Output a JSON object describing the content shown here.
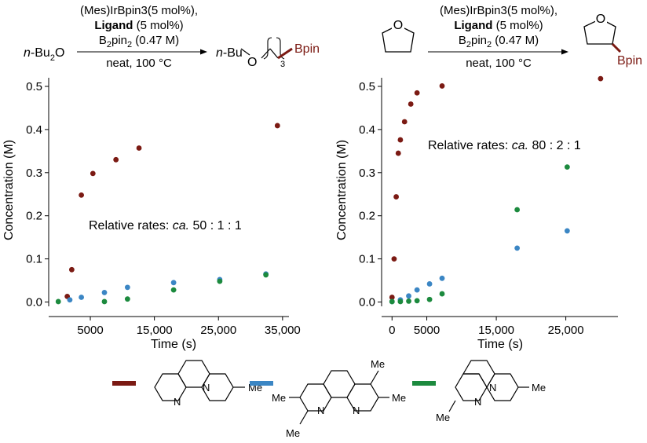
{
  "colors": {
    "red": "#7b1a13",
    "blue": "#3b86c4",
    "green": "#1c8a3e"
  },
  "left_scheme": {
    "reactant": "n-Bu2O",
    "line1": "(Mes)IrBpin3(5 mol%),",
    "line2_bold": "Ligand",
    "line2_rest": " (5 mol%)",
    "line3": "B2pin2 (0.47 M)",
    "below": "neat, 100 °C",
    "product_prefix": "n-Bu",
    "product_O": "O",
    "product_sub": "3",
    "product_boron": "Bpin"
  },
  "right_scheme": {
    "line1": "(Mes)IrBpin3(5 mol%),",
    "line2_bold": "Ligand",
    "line2_rest": " (5 mol%)",
    "line3": "B2pin2 (0.47 M)",
    "below": "neat, 100 °C",
    "ring_O": "O",
    "product_boron": "Bpin"
  },
  "ligands": {
    "me": "Me",
    "n": "N"
  },
  "chart_data": [
    {
      "type": "scatter",
      "xlabel": "Time (s)",
      "ylabel": "Concentration (M)",
      "xlim": [
        -1500,
        36000
      ],
      "ylim": [
        -0.01,
        0.52
      ],
      "xticks": [
        5000,
        15000,
        25000,
        35000
      ],
      "xtick_labels": [
        "5000",
        "15,000",
        "25,000",
        "35,000"
      ],
      "yticks": [
        0.0,
        0.1,
        0.2,
        0.3,
        0.4,
        0.5
      ],
      "ytick_labels": [
        "0.0",
        "0.1",
        "0.2",
        "0.3",
        "0.4",
        "0.5"
      ],
      "annotation_prefix": "Relative rates: ",
      "annotation_italic": "ca.",
      "annotation_suffix": " 50 : 1 : 1",
      "series": [
        {
          "name": "2-methyl-1,10-phenanthroline",
          "color": "red",
          "x": [
            1400,
            2100,
            3600,
            5400,
            9000,
            12600,
            34200
          ],
          "y": [
            0.013,
            0.075,
            0.248,
            0.298,
            0.33,
            0.357,
            0.409
          ]
        },
        {
          "name": "3,4,7,8-tetramethyl-1,10-phenanthroline",
          "color": "blue",
          "x": [
            1800,
            3600,
            7200,
            10800,
            18000,
            25200,
            32400
          ],
          "y": [
            0.005,
            0.011,
            0.022,
            0.034,
            0.045,
            0.052,
            0.065
          ]
        },
        {
          "name": "2,9-dimethyl-1,10-phenanthroline",
          "color": "green",
          "x": [
            0,
            7200,
            10800,
            18000,
            25200,
            32400
          ],
          "y": [
            0.001,
            0.001,
            0.007,
            0.028,
            0.048,
            0.063
          ]
        }
      ]
    },
    {
      "type": "scatter",
      "xlabel": "Time (s)",
      "ylabel": "Concentration (M)",
      "xlim": [
        -1500,
        32500
      ],
      "ylim": [
        -0.01,
        0.52
      ],
      "xticks": [
        0,
        5000,
        15000,
        25000
      ],
      "xtick_labels": [
        "0",
        "5000",
        "15,000",
        "25,000"
      ],
      "yticks": [
        0.0,
        0.1,
        0.2,
        0.3,
        0.4,
        0.5
      ],
      "ytick_labels": [
        "0.0",
        "0.1",
        "0.2",
        "0.3",
        "0.4",
        "0.5"
      ],
      "annotation_prefix": "Relative rates: ",
      "annotation_italic": "ca.",
      "annotation_suffix": " 80 : 2 : 1",
      "series": [
        {
          "name": "2-methyl-1,10-phenanthroline",
          "color": "red",
          "x": [
            0,
            300,
            600,
            900,
            1200,
            1800,
            2700,
            3600,
            7200,
            30000
          ],
          "y": [
            0.011,
            0.1,
            0.244,
            0.345,
            0.376,
            0.418,
            0.459,
            0.485,
            0.501,
            0.518
          ]
        },
        {
          "name": "3,4,7,8-tetramethyl-1,10-phenanthroline",
          "color": "blue",
          "x": [
            0,
            1200,
            2400,
            3600,
            5400,
            7200,
            18000,
            25200
          ],
          "y": [
            0.001,
            0.005,
            0.014,
            0.028,
            0.042,
            0.055,
            0.125,
            0.165
          ]
        },
        {
          "name": "2,9-dimethyl-1,10-phenanthroline",
          "color": "green",
          "x": [
            0,
            1200,
            2400,
            3600,
            5400,
            7200,
            18000,
            25200
          ],
          "y": [
            0.001,
            0.001,
            0.002,
            0.003,
            0.006,
            0.019,
            0.214,
            0.313
          ]
        }
      ]
    }
  ]
}
